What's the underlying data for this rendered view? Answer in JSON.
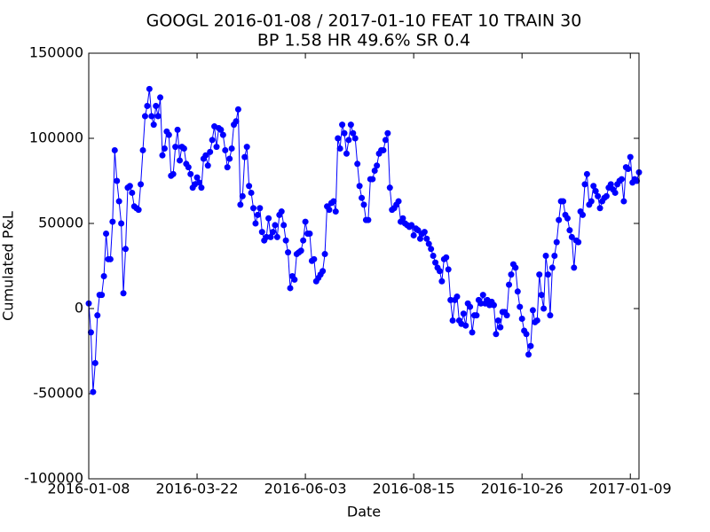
{
  "chart_data": {
    "type": "line",
    "title": "GOOGL 2016-01-08 / 2017-01-10 FEAT 10 TRAIN 30",
    "subtitle": "BP 1.58 HR 49.6%  SR 0.4",
    "x_label": "Date",
    "y_label": "Cumulated P&L",
    "color": "#0000ff",
    "markers": true,
    "xlim": [
      0,
      254
    ],
    "xticks": [
      {
        "value": 0,
        "label": "2016-01-08"
      },
      {
        "value": 50,
        "label": "2016-03-22"
      },
      {
        "value": 100,
        "label": "2016-06-03"
      },
      {
        "value": 150,
        "label": "2016-08-15"
      },
      {
        "value": 200,
        "label": "2016-10-26"
      },
      {
        "value": 250,
        "label": "2017-01-09"
      }
    ],
    "ylim": [
      -100000,
      150000
    ],
    "yticks": [
      -100000,
      -50000,
      0,
      50000,
      100000,
      150000
    ],
    "values": [
      3000,
      -14000,
      -49000,
      -32000,
      -4000,
      8000,
      8000,
      19000,
      44000,
      29000,
      29000,
      51000,
      93000,
      75000,
      63000,
      50000,
      9000,
      35000,
      71000,
      72000,
      68000,
      60000,
      59000,
      58000,
      73000,
      93000,
      113000,
      119000,
      129000,
      113000,
      108000,
      119000,
      113000,
      124000,
      90000,
      94000,
      104000,
      102000,
      78000,
      79000,
      95000,
      105000,
      87000,
      95000,
      94000,
      85000,
      83000,
      79000,
      71000,
      73000,
      77000,
      74000,
      71000,
      88000,
      90000,
      84000,
      92000,
      99000,
      107000,
      95000,
      106000,
      105000,
      102000,
      93000,
      83000,
      88000,
      94000,
      108000,
      110000,
      117000,
      61000,
      66000,
      89000,
      95000,
      72000,
      68000,
      59000,
      50000,
      55000,
      59000,
      45000,
      40000,
      42000,
      53000,
      42000,
      45000,
      49000,
      42000,
      55000,
      57000,
      49000,
      40000,
      33000,
      12000,
      19000,
      17000,
      32000,
      33000,
      34000,
      40000,
      51000,
      44000,
      44000,
      28000,
      29000,
      16000,
      18000,
      20000,
      22000,
      32000,
      60000,
      58000,
      62000,
      63000,
      57000,
      100000,
      94000,
      108000,
      103000,
      91000,
      99000,
      108000,
      103000,
      100000,
      85000,
      72000,
      65000,
      61000,
      52000,
      52000,
      76000,
      76000,
      81000,
      84000,
      91000,
      93000,
      93000,
      99000,
      103000,
      71000,
      58000,
      59000,
      61000,
      63000,
      51000,
      53000,
      50000,
      49000,
      48000,
      49000,
      43000,
      47000,
      46000,
      41000,
      44000,
      45000,
      41000,
      38000,
      35000,
      31000,
      27000,
      24000,
      22000,
      16000,
      29000,
      30000,
      23000,
      5000,
      -7000,
      5000,
      7000,
      -7000,
      -9000,
      -3000,
      -10000,
      3000,
      1000,
      -14000,
      -4000,
      -4000,
      5000,
      3000,
      8000,
      3000,
      5000,
      2000,
      4000,
      2000,
      -15000,
      -7000,
      -11000,
      -2000,
      -2000,
      -4000,
      14000,
      20000,
      26000,
      24000,
      10000,
      1000,
      -6000,
      -13000,
      -15000,
      -27000,
      -22000,
      -1000,
      -8000,
      -7000,
      20000,
      8000,
      0,
      31000,
      20000,
      -4000,
      24000,
      31000,
      39000,
      52000,
      63000,
      63000,
      55000,
      53000,
      46000,
      42000,
      24000,
      40000,
      39000,
      57000,
      55000,
      73000,
      79000,
      61000,
      63000,
      72000,
      69000,
      66000,
      59000,
      63000,
      65000,
      66000,
      71000,
      73000,
      70000,
      68000,
      73000,
      75000,
      76000,
      63000,
      83000,
      82000,
      89000,
      74000,
      76000,
      75000,
      80000
    ]
  }
}
